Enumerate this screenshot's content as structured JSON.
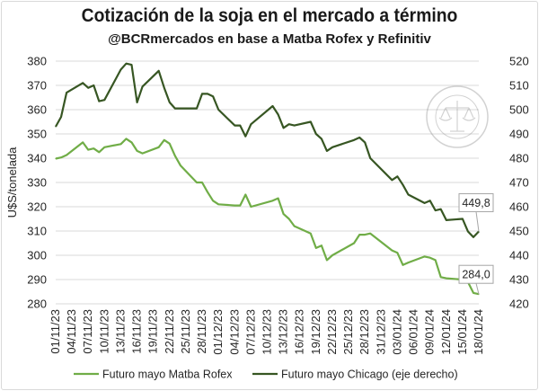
{
  "chart_data": {
    "type": "line",
    "title": "Cotización de la soja en el mercado a término",
    "subtitle": "@BCRmercados en base a Matba Rofex y Refinitiv",
    "ylabel": "U$S/tonelada",
    "ylim": [
      280,
      380
    ],
    "y2lim": [
      420,
      520
    ],
    "y_ticks": [
      280,
      290,
      300,
      310,
      320,
      330,
      340,
      350,
      360,
      370,
      380
    ],
    "y2_ticks": [
      420,
      430,
      440,
      450,
      460,
      470,
      480,
      490,
      500,
      510,
      520
    ],
    "grid": true,
    "legend_position": "bottom",
    "x_tick_labels": [
      "01/11/23",
      "04/11/23",
      "07/11/23",
      "10/11/23",
      "13/11/23",
      "16/11/23",
      "19/11/23",
      "22/11/23",
      "25/11/23",
      "28/11/23",
      "01/12/23",
      "04/12/23",
      "07/12/23",
      "10/12/23",
      "13/12/23",
      "16/12/23",
      "19/12/23",
      "22/12/23",
      "25/12/23",
      "28/12/23",
      "31/12/23",
      "03/01/24",
      "06/01/24",
      "09/01/24",
      "12/01/24",
      "15/01/24",
      "18/01/24"
    ],
    "dates": [
      "01/11/23",
      "02/11/23",
      "03/11/23",
      "06/11/23",
      "07/11/23",
      "08/11/23",
      "09/11/23",
      "10/11/23",
      "13/11/23",
      "14/11/23",
      "15/11/23",
      "16/11/23",
      "17/11/23",
      "20/11/23",
      "21/11/23",
      "22/11/23",
      "23/11/23",
      "24/11/23",
      "27/11/23",
      "28/11/23",
      "29/11/23",
      "30/11/23",
      "01/12/23",
      "04/12/23",
      "05/12/23",
      "06/12/23",
      "07/12/23",
      "11/12/23",
      "12/12/23",
      "13/12/23",
      "14/12/23",
      "15/12/23",
      "18/12/23",
      "19/12/23",
      "20/12/23",
      "21/12/23",
      "22/12/23",
      "26/12/23",
      "27/12/23",
      "28/12/23",
      "29/12/23",
      "02/01/24",
      "03/01/24",
      "04/01/24",
      "05/01/24",
      "08/01/24",
      "09/01/24",
      "10/01/24",
      "11/01/24",
      "12/01/24",
      "15/01/24",
      "16/01/24",
      "17/01/24",
      "18/01/24"
    ],
    "series": [
      {
        "name": "Futuro mayo Matba Rofex",
        "color": "#70ad47",
        "axis": "left",
        "values": [
          339.8,
          340.3,
          341.3,
          346.5,
          343.5,
          344.0,
          342.5,
          344.5,
          345.8,
          348.0,
          346.5,
          343.0,
          342.0,
          344.5,
          347.5,
          346.0,
          341.0,
          337.0,
          330.0,
          330.0,
          326.0,
          322.5,
          321.0,
          320.5,
          320.5,
          325.0,
          320.0,
          322.5,
          323.5,
          317.0,
          315.0,
          312.0,
          309.0,
          303.0,
          304.0,
          298.0,
          300.0,
          305.0,
          308.5,
          308.5,
          309.0,
          302.0,
          301.0,
          296.0,
          297.0,
          299.5,
          299.0,
          298.0,
          291.0,
          290.5,
          290.0,
          289.0,
          284.5,
          284.0
        ]
      },
      {
        "name": "Futuro mayo Chicago (eje derecho)",
        "color": "#375623",
        "axis": "right",
        "values": [
          493.0,
          497.0,
          507.0,
          511.0,
          509.0,
          510.0,
          503.5,
          504.0,
          516.5,
          519.0,
          518.5,
          503.0,
          509.5,
          516.0,
          509.0,
          503.0,
          500.5,
          500.5,
          500.5,
          506.5,
          506.5,
          505.5,
          500.0,
          493.5,
          493.5,
          489.0,
          494.0,
          501.5,
          498.0,
          492.5,
          494.0,
          493.5,
          495.0,
          490.0,
          488.0,
          483.0,
          484.5,
          487.5,
          488.5,
          486.5,
          480.0,
          471.0,
          472.5,
          469.0,
          465.0,
          461.5,
          462.5,
          458.5,
          459.0,
          454.5,
          455.0,
          449.8,
          447.5,
          449.8
        ]
      }
    ],
    "annotations": [
      {
        "label": "449,8",
        "series": "Futuro mayo Chicago (eje derecho)"
      },
      {
        "label": "284,0",
        "series": "Futuro mayo Matba Rofex"
      }
    ]
  }
}
